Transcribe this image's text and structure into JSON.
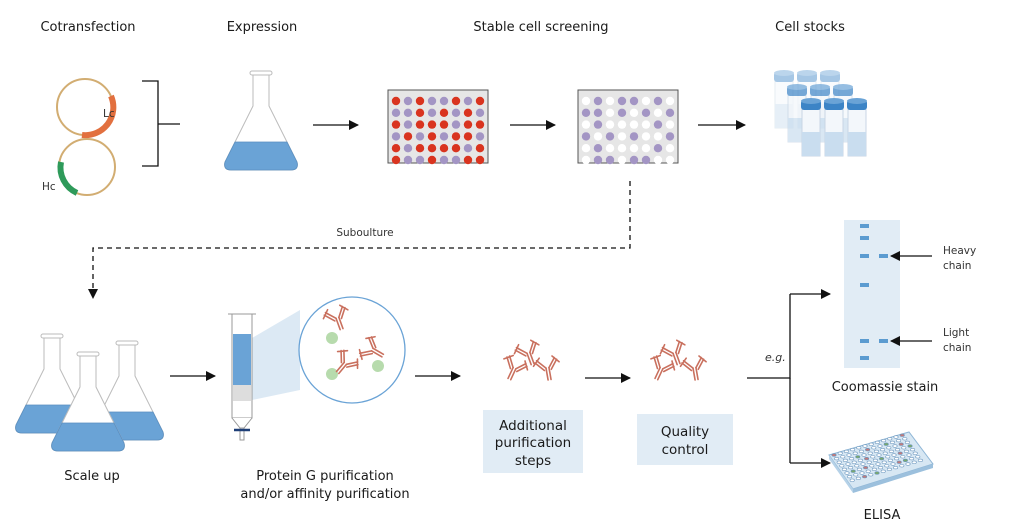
{
  "steps": {
    "cotransfection": "Cotransfection",
    "expression": "Expression",
    "stable_screening": "Stable cell screening",
    "cell_stocks": "Cell stocks",
    "subculture": "Suboulture",
    "scale_up": "Scale up",
    "protein_g_line1": "Protein G purification",
    "protein_g_line2": "and/or affinity purification",
    "additional_line1": "Additional",
    "additional_line2": "purification",
    "additional_line3": "steps",
    "qc_line1": "Quality",
    "qc_line2": "control",
    "eg": "e.g.",
    "coomassie": "Coomassie stain",
    "elisa": "ELISA",
    "heavy_line1": "Heavy",
    "heavy_line2": "chain",
    "light_line1": "Light",
    "light_line2": "chain"
  },
  "plasmids": {
    "light": "Lc",
    "heavy": "Hc"
  },
  "plates": {
    "screen1": [
      "RPRPPRPR",
      "PPRPRPRP",
      "RPRRRPRR",
      "PRPRPRRP",
      "RPRRRRPR",
      "RPPRPPRR"
    ],
    "screen2": [
      "WPWPPWPW",
      "PPWPWPWP",
      "WPWWWWPW",
      "PWPWPWWP",
      "WPWWWWPW",
      "WPPWPPWW"
    ]
  },
  "colors": {
    "red_well": "#d9341f",
    "purple_well": "#a395c4",
    "white_well": "#ffffff",
    "medium_blue": "#6aa3d6",
    "box_fill": "#e1ecf5",
    "antibody": "#c9705e",
    "lc_gene": "#e2703f",
    "hc_gene": "#2e9a5a",
    "plasmid": "#d2ad72"
  }
}
